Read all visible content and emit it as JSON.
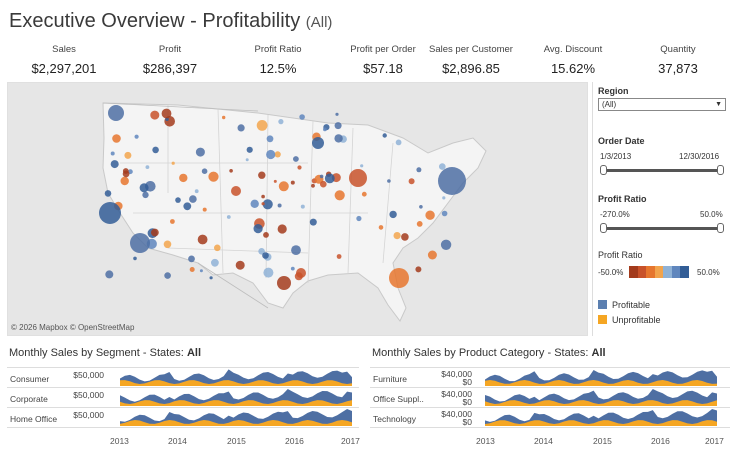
{
  "header": {
    "title": "Executive Overview - Profitability",
    "subtitle": "(All)"
  },
  "kpis": [
    {
      "label": "Sales",
      "value": "$2,297,201"
    },
    {
      "label": "Profit",
      "value": "$286,397"
    },
    {
      "label": "Profit Ratio",
      "value": "12.5%"
    },
    {
      "label": "Profit per Order",
      "value": "$57.18"
    },
    {
      "label": "Sales per Customer",
      "value": "$2,896.85"
    },
    {
      "label": "Avg. Discount",
      "value": "15.62%"
    },
    {
      "label": "Quantity",
      "value": "37,873"
    }
  ],
  "map": {
    "credit": "© 2026 Mapbox  © OpenStreetMap"
  },
  "filters": {
    "region": {
      "label": "Region",
      "value": "(All)"
    },
    "order_date": {
      "label": "Order Date",
      "min": "1/3/2013",
      "max": "12/30/2016"
    },
    "profit_ratio": {
      "label": "Profit Ratio",
      "min": "-270.0%",
      "max": "50.0%"
    },
    "color_legend": {
      "label": "Profit Ratio",
      "min": "-50.0%",
      "max": "50.0%"
    },
    "legend": [
      {
        "label": "Profitable",
        "color": "#5b7fb0"
      },
      {
        "label": "Unprofitable",
        "color": "#f5a623"
      }
    ]
  },
  "segment_chart": {
    "title": "Monthly Sales by Segment - States:",
    "filter": "All",
    "rows": [
      {
        "label": "Consumer",
        "value": "$50,000"
      },
      {
        "label": "Corporate",
        "value": "$50,000"
      },
      {
        "label": "Home Office",
        "value": "$50,000"
      }
    ]
  },
  "category_chart": {
    "title": "Monthly Sales by Product Category - States:",
    "filter": "All",
    "rows": [
      {
        "label": "Furniture",
        "value": "$40,000",
        "value2": "$0"
      },
      {
        "label": "Office Suppl..",
        "value": "$40,000",
        "value2": "$0"
      },
      {
        "label": "Technology",
        "value": "$40,000",
        "value2": "$0"
      }
    ]
  },
  "years": [
    "2013",
    "2014",
    "2015",
    "2016",
    "2017"
  ],
  "colors": {
    "profitable": "#4e6fa3",
    "unprofitable": "#f5a623",
    "map_bg": "#e6e6e6"
  }
}
